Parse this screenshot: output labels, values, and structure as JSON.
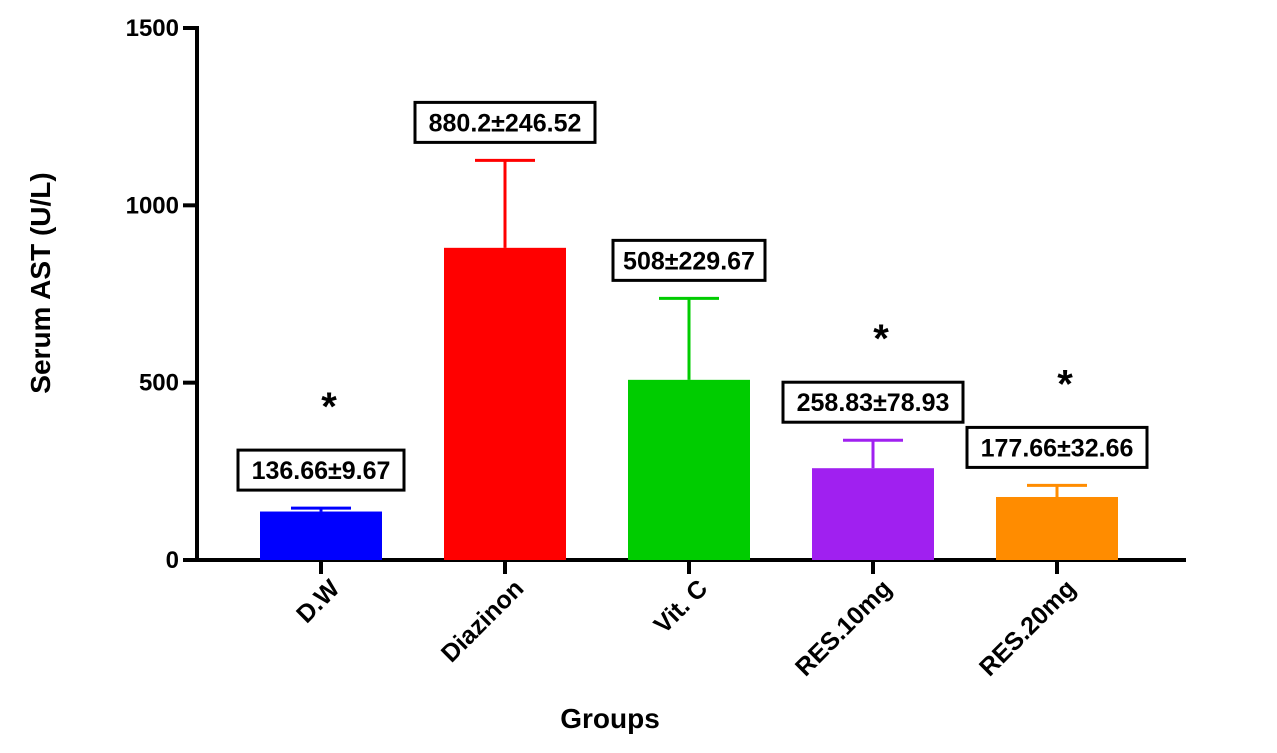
{
  "chart_data": {
    "type": "bar",
    "title": "",
    "xlabel": "Groups",
    "ylabel": "Serum AST (U/L)",
    "ylim": [
      0,
      1500
    ],
    "yticks": [
      0,
      500,
      1000,
      1500
    ],
    "grid": false,
    "legend": "none",
    "categories": [
      "D.W",
      "Diazinon",
      "Vit. C",
      "RES.10mg",
      "RES.20mg"
    ],
    "values": [
      136.66,
      880.2,
      508,
      258.83,
      177.66
    ],
    "errors": [
      9.67,
      246.52,
      229.67,
      78.93,
      32.66
    ],
    "data_labels": [
      "136.66±9.67",
      "880.2±246.52",
      "508±229.67",
      "258.83±78.93",
      "177.66±32.66"
    ],
    "significance": [
      "*",
      "",
      "",
      "*",
      "*"
    ],
    "colors": [
      "#0000ff",
      "#ff0000",
      "#00cc00",
      "#a020f0",
      "#ff8c00"
    ]
  }
}
